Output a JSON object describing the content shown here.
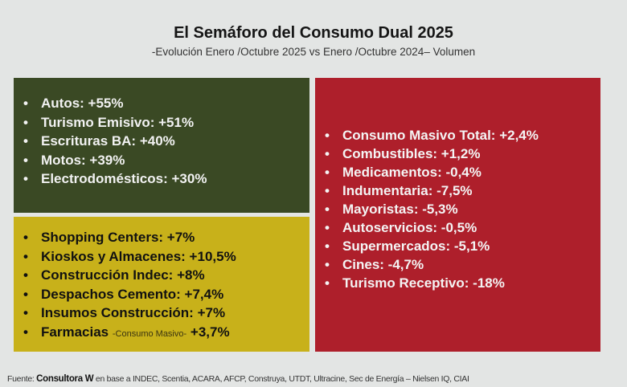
{
  "title": "El Semáforo del Consumo Dual 2025",
  "subtitle": "-Evolución Enero /Octubre 2025 vs Enero /Octubre 2024– Volumen",
  "colors": {
    "green": "#3a4924",
    "yellow": "#c8b11a",
    "red": "#ae1f2b"
  },
  "green_items": [
    "Autos: +55%",
    "Turismo Emisivo: +51%",
    "Escrituras BA: +40%",
    "Motos: +39%",
    "Electrodomésticos: +30%"
  ],
  "yellow_items": [
    "Shopping Centers: +7%",
    "Kioskos y Almacenes: +10,5%",
    "Construcción Indec: +8%",
    "Despachos Cemento: +7,4%",
    "Insumos Construcción: +7%"
  ],
  "yellow_last": {
    "label": "Farmacias",
    "note": "-Consumo Masivo-",
    "value": "+3,7%"
  },
  "red_items": [
    "Consumo Masivo Total: +2,4%",
    "Combustibles: +1,2%",
    "Medicamentos: -0,4%",
    "Indumentaria: -7,5%",
    "Mayoristas: -5,3%",
    "Autoservicios: -0,5%",
    "Supermercados: -5,1%",
    "Cines: -4,7%",
    "Turismo Receptivo: -18%"
  ],
  "footer": {
    "prefix": "Fuente: ",
    "source": "Consultora W",
    "rest": " en base a INDEC, Scentia, ACARA, AFCP, Construya, UTDT, Ultracine, Sec de Energía – Nielsen IQ, CIAI"
  }
}
